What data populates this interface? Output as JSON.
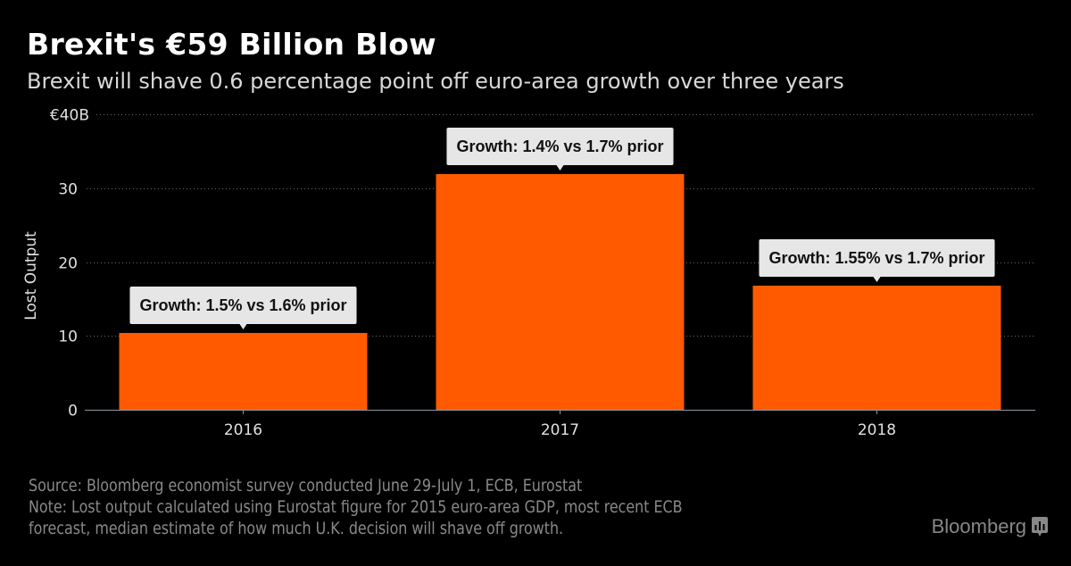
{
  "header": {
    "title": "Brexit's €59 Billion Blow",
    "subtitle": "Brexit will shave 0.6 percentage point off euro-area growth over three years"
  },
  "chart_data": {
    "type": "bar",
    "title": "Brexit's €59 Billion Blow",
    "subtitle": "Brexit will shave 0.6 percentage point off euro-area growth over three years",
    "xlabel": "",
    "ylabel": "Lost Output",
    "categories": [
      "2016",
      "2017",
      "2018"
    ],
    "values": [
      10.4,
      31.9,
      16.8
    ],
    "unit": "€B",
    "ylim": [
      0,
      40
    ],
    "yticks": [
      0,
      10,
      20,
      30,
      40
    ],
    "ytick_labels": [
      "0",
      "10",
      "20",
      "30",
      "€40B"
    ],
    "grid": true,
    "bar_color": "#ff5a00",
    "annotations": [
      "Growth: 1.5% vs 1.6% prior",
      "Growth: 1.4% vs 1.7% prior",
      "Growth: 1.55% vs 1.7% prior"
    ]
  },
  "footer": {
    "source": "Source: Bloomberg economist survey conducted June 29-July 1, ECB, Eurostat",
    "note_line1": "Note: Lost output calculated using Eurostat figure for 2015 euro-area GDP, most recent ECB",
    "note_line2": "forecast, median estimate of how much U.K. decision will shave off growth."
  },
  "branding": {
    "logo_text": "Bloomberg",
    "logo_icon": "bloomberg-chart-bubble-icon"
  }
}
